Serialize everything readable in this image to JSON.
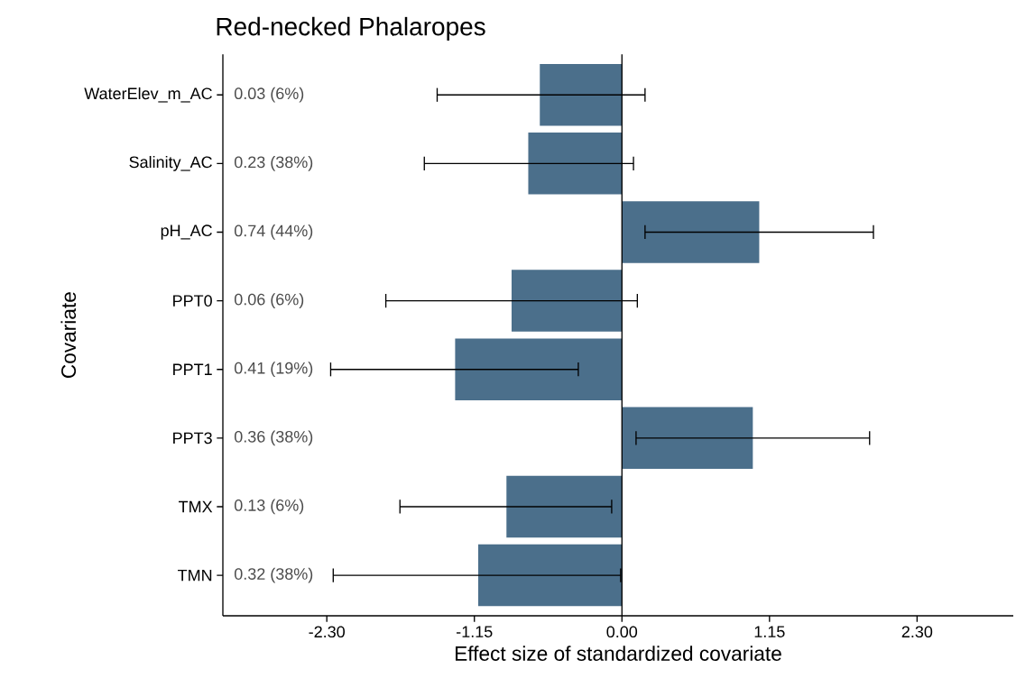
{
  "chart_data": {
    "type": "bar",
    "orientation": "horizontal",
    "title": "Red-necked Phalaropes",
    "xlabel": "Effect size of standardized covariate",
    "ylabel": "Covariate",
    "categories": [
      "WaterElev_m_AC",
      "Salinity_AC",
      "pH_AC",
      "PPT0",
      "PPT1",
      "PPT3",
      "TMX",
      "TMN"
    ],
    "values": [
      -0.64,
      -0.73,
      1.07,
      -0.86,
      -1.3,
      1.02,
      -0.9,
      -1.12
    ],
    "errors": [
      [
        -1.44,
        0.18
      ],
      [
        -1.54,
        0.09
      ],
      [
        0.18,
        1.96
      ],
      [
        -1.84,
        0.12
      ],
      [
        -2.27,
        -0.34
      ],
      [
        0.11,
        1.93
      ],
      [
        -1.73,
        -0.08
      ],
      [
        -2.25,
        -0.01
      ]
    ],
    "color": "#4b6f8b",
    "xlim": [
      -3.11,
      3.05
    ],
    "xticks": [
      {
        "value": -2.3,
        "label": "-2.30"
      },
      {
        "value": -1.15,
        "label": "-1.15"
      },
      {
        "value": 0,
        "label": "0.00"
      },
      {
        "value": 1.15,
        "label": "1.15"
      },
      {
        "value": 2.3,
        "label": "2.30"
      }
    ],
    "ref_lines": [
      {
        "axis": "x",
        "value": 0,
        "color": "#000000"
      }
    ],
    "annotations": [
      "0.03 (6%)",
      "0.23 (38%)",
      "0.74 (44%)",
      "0.06 (6%)",
      "0.41 (19%)",
      "0.36 (38%)",
      "0.13 (6%)",
      "0.32 (38%)"
    ]
  }
}
